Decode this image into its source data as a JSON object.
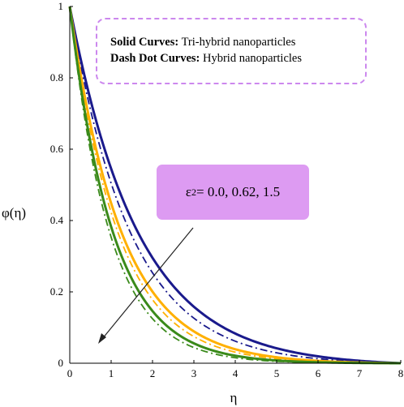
{
  "chart_data": {
    "type": "line",
    "title": "",
    "xlabel": "η",
    "ylabel": "φ(η)",
    "xlim": [
      0,
      8
    ],
    "ylim": [
      0,
      1
    ],
    "x_ticks": [
      "0",
      "1",
      "2",
      "3",
      "4",
      "5",
      "6",
      "7",
      "8"
    ],
    "y_ticks": [
      "0",
      "0.2",
      "0.4",
      "0.6",
      "0.8",
      "1"
    ],
    "legend": {
      "line1_bold": "Solid Curves:",
      "line1_text": " Tri-hybrid nanoparticles",
      "line2_bold": "Dash Dot Curves:",
      "line2_text": " Hybrid nanoparticles"
    },
    "annotation": {
      "symbol": "ε",
      "subscript": "2",
      "text": " = 0.0, 0.62, 1.5"
    },
    "colors": {
      "navy": "#1a1a8c",
      "orange": "#ffb000",
      "green": "#3a8a1a"
    },
    "series": [
      {
        "style": "solid",
        "color": "#1a1a8c",
        "decay": 0.6,
        "tail": 0.005
      },
      {
        "style": "dashdot",
        "color": "#1a1a8c",
        "decay": 0.68,
        "tail": 0.005
      },
      {
        "style": "solid",
        "color": "#ffb000",
        "decay": 0.8,
        "tail": 0.005
      },
      {
        "style": "dashdot",
        "color": "#ffb000",
        "decay": 0.86,
        "tail": 0.005
      },
      {
        "style": "solid",
        "color": "#3a8a1a",
        "decay": 0.96,
        "tail": 0.005
      },
      {
        "style": "dashdot",
        "color": "#3a8a1a",
        "decay": 1.04,
        "tail": 0.005
      }
    ]
  }
}
